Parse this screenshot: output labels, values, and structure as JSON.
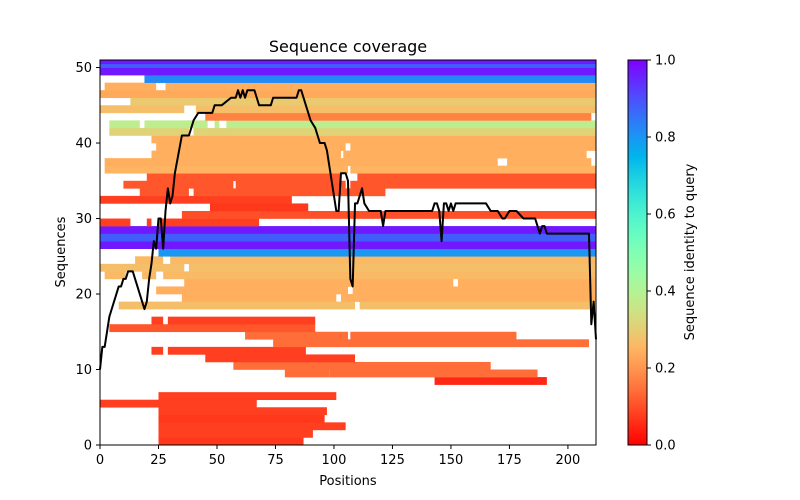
{
  "chart_data": {
    "type": "heatmap",
    "title": "Sequence coverage",
    "xlabel": "Positions",
    "ylabel": "Sequences",
    "xlim": [
      0,
      212
    ],
    "ylim": [
      0,
      51
    ],
    "xticks": [
      "0",
      "25",
      "50",
      "75",
      "100",
      "125",
      "150",
      "175",
      "200"
    ],
    "xtick_values": [
      0,
      25,
      50,
      75,
      100,
      125,
      150,
      175,
      200
    ],
    "yticks": [
      "0",
      "10",
      "20",
      "30",
      "40",
      "50"
    ],
    "ytick_values": [
      0,
      10,
      20,
      30,
      40,
      50
    ],
    "colorbar": {
      "label": "Sequence identity to query",
      "colormap": "rainbow",
      "range": [
        0,
        1
      ],
      "ticks": [
        "0.0",
        "0.2",
        "0.4",
        "0.6",
        "0.8",
        "1.0"
      ],
      "tick_values": [
        0,
        0.2,
        0.4,
        0.6,
        0.8,
        1.0
      ]
    },
    "rows": [
      {
        "row": 0,
        "identity": 0.07,
        "segments": [
          [
            25,
            87
          ]
        ]
      },
      {
        "row": 1,
        "identity": 0.08,
        "segments": [
          [
            25,
            91
          ]
        ]
      },
      {
        "row": 2,
        "identity": 0.08,
        "segments": [
          [
            25,
            105
          ]
        ]
      },
      {
        "row": 3,
        "identity": 0.07,
        "segments": [
          [
            25,
            96
          ]
        ]
      },
      {
        "row": 4,
        "identity": 0.08,
        "segments": [
          [
            25,
            97
          ]
        ]
      },
      {
        "row": 5,
        "identity": 0.08,
        "segments": [
          [
            0,
            67
          ]
        ]
      },
      {
        "row": 6,
        "identity": 0.08,
        "segments": [
          [
            25,
            101
          ]
        ]
      },
      {
        "row": 8,
        "identity": 0.05,
        "segments": [
          [
            143,
            191
          ]
        ]
      },
      {
        "row": 9,
        "identity": 0.14,
        "segments": [
          [
            79,
            98
          ],
          [
            98,
            187
          ]
        ]
      },
      {
        "row": 10,
        "identity": 0.14,
        "segments": [
          [
            57,
            167
          ]
        ]
      },
      {
        "row": 11,
        "identity": 0.08,
        "segments": [
          [
            45,
            109
          ]
        ]
      },
      {
        "row": 12,
        "identity": 0.08,
        "segments": [
          [
            22,
            27
          ],
          [
            29,
            88
          ]
        ]
      },
      {
        "row": 13,
        "identity": 0.14,
        "segments": [
          [
            74,
            209
          ]
        ]
      },
      {
        "row": 14,
        "identity": 0.14,
        "segments": [
          [
            62,
            106
          ],
          [
            107,
            178
          ]
        ]
      },
      {
        "row": 15,
        "identity": 0.11,
        "segments": [
          [
            4,
            92
          ]
        ]
      },
      {
        "row": 16,
        "identity": 0.08,
        "segments": [
          [
            22,
            27
          ],
          [
            29,
            92
          ]
        ]
      },
      {
        "row": 18,
        "identity": 0.27,
        "segments": [
          [
            8,
            109
          ],
          [
            111,
            212
          ]
        ]
      },
      {
        "row": 19,
        "identity": 0.24,
        "segments": [
          [
            35,
            101
          ],
          [
            103,
            212
          ]
        ]
      },
      {
        "row": 20,
        "identity": 0.24,
        "segments": [
          [
            24,
            106
          ],
          [
            108,
            212
          ]
        ]
      },
      {
        "row": 21,
        "identity": 0.24,
        "segments": [
          [
            36,
            151
          ],
          [
            153,
            212
          ]
        ]
      },
      {
        "row": 22,
        "identity": 0.26,
        "segments": [
          [
            2,
            11
          ],
          [
            18,
            24
          ],
          [
            27,
            212
          ]
        ]
      },
      {
        "row": 23,
        "identity": 0.27,
        "segments": [
          [
            0,
            36
          ],
          [
            38,
            212
          ]
        ]
      },
      {
        "row": 24,
        "identity": 0.26,
        "segments": [
          [
            15,
            27
          ],
          [
            30,
            212
          ]
        ]
      },
      {
        "row": 25,
        "identity": 0.8,
        "segments": [
          [
            25,
            212
          ]
        ]
      },
      {
        "row": 26,
        "identity": 0.97,
        "segments": [
          [
            0,
            212
          ]
        ]
      },
      {
        "row": 27,
        "identity": 0.88,
        "segments": [
          [
            0,
            212
          ]
        ]
      },
      {
        "row": 28,
        "identity": 0.97,
        "segments": [
          [
            0,
            212
          ]
        ]
      },
      {
        "row": 29,
        "identity": 0.08,
        "segments": [
          [
            0,
            13
          ],
          [
            20,
            22
          ],
          [
            25,
            68
          ]
        ]
      },
      {
        "row": 30,
        "identity": 0.1,
        "segments": [
          [
            35,
            212
          ]
        ]
      },
      {
        "row": 31,
        "identity": 0.07,
        "segments": [
          [
            47,
            89
          ]
        ]
      },
      {
        "row": 32,
        "identity": 0.08,
        "segments": [
          [
            0,
            82
          ]
        ]
      },
      {
        "row": 33,
        "identity": 0.11,
        "segments": [
          [
            17,
            38
          ],
          [
            40,
            122
          ]
        ]
      },
      {
        "row": 34,
        "identity": 0.11,
        "segments": [
          [
            10,
            57
          ],
          [
            58,
            105
          ],
          [
            107,
            212
          ]
        ]
      },
      {
        "row": 35,
        "identity": 0.11,
        "segments": [
          [
            20,
            103
          ],
          [
            110,
            212
          ]
        ]
      },
      {
        "row": 36,
        "identity": 0.25,
        "segments": [
          [
            2,
            106
          ],
          [
            107,
            212
          ]
        ]
      },
      {
        "row": 37,
        "identity": 0.24,
        "segments": [
          [
            2,
            170
          ],
          [
            174,
            210
          ]
        ]
      },
      {
        "row": 38,
        "identity": 0.24,
        "segments": [
          [
            22,
            103
          ],
          [
            104,
            208
          ]
        ]
      },
      {
        "row": 39,
        "identity": 0.24,
        "segments": [
          [
            24,
            105
          ],
          [
            107,
            212
          ]
        ]
      },
      {
        "row": 40,
        "identity": 0.24,
        "segments": [
          [
            22,
            212
          ]
        ]
      },
      {
        "row": 41,
        "identity": 0.31,
        "segments": [
          [
            4,
            38
          ],
          [
            40,
            212
          ]
        ]
      },
      {
        "row": 42,
        "identity": 0.38,
        "segments": [
          [
            4,
            17
          ],
          [
            19,
            46
          ],
          [
            49,
            51
          ],
          [
            54,
            212
          ]
        ]
      },
      {
        "row": 43,
        "identity": 0.17,
        "segments": [
          [
            45,
            210
          ]
        ]
      },
      {
        "row": 44,
        "identity": 0.27,
        "segments": [
          [
            0,
            36
          ],
          [
            41,
            212
          ]
        ]
      },
      {
        "row": 45,
        "identity": 0.29,
        "segments": [
          [
            13,
            212
          ]
        ]
      },
      {
        "row": 46,
        "identity": 0.23,
        "segments": [
          [
            0,
            212
          ]
        ]
      },
      {
        "row": 47,
        "identity": 0.24,
        "segments": [
          [
            2,
            24
          ],
          [
            28,
            212
          ]
        ]
      },
      {
        "row": 48,
        "identity": 0.82,
        "segments": [
          [
            19,
            212
          ]
        ]
      },
      {
        "row": 49,
        "identity": 0.97,
        "segments": [
          [
            0,
            212
          ]
        ]
      },
      {
        "row": 50,
        "identity": 0.88,
        "segments": [
          [
            0,
            212
          ]
        ]
      },
      {
        "row": 50.5,
        "identity": 0.97,
        "segments": [
          [
            0,
            212
          ]
        ]
      }
    ],
    "coverage_line": {
      "name": "coverage",
      "color": "#000000",
      "x": [
        0,
        1,
        2,
        3,
        4,
        5,
        6,
        7,
        8,
        9,
        10,
        11,
        12,
        13,
        14,
        15,
        16,
        17,
        18,
        19,
        20,
        21,
        22,
        23,
        24,
        25,
        26,
        27,
        28,
        29,
        30,
        31,
        32,
        35,
        36,
        37,
        38,
        40,
        42,
        43,
        44,
        46,
        48,
        49,
        50,
        52,
        56,
        57,
        58,
        59,
        60,
        61,
        62,
        63,
        64,
        66,
        67,
        68,
        69,
        73,
        74,
        84,
        85,
        86,
        87,
        88,
        89,
        90,
        92,
        93,
        94,
        95,
        96,
        97,
        98,
        99,
        100,
        101,
        102,
        103,
        104,
        105,
        106,
        107,
        108,
        109,
        110,
        111,
        112,
        113,
        115,
        120,
        121,
        122,
        123,
        125,
        140,
        142,
        143,
        144,
        145,
        146,
        147,
        148,
        149,
        150,
        151,
        152,
        153,
        154,
        164,
        165,
        167,
        168,
        170,
        172,
        173,
        175,
        176,
        178,
        181,
        182,
        185,
        186,
        187,
        188,
        189,
        190,
        191,
        192,
        200,
        208,
        209,
        210,
        211,
        212
      ],
      "y": [
        10,
        13,
        13,
        15,
        17,
        18,
        19,
        20,
        21,
        21,
        22,
        22,
        23,
        23,
        23,
        22,
        21,
        20,
        19,
        18,
        19,
        22,
        24,
        27,
        26,
        30,
        30,
        26,
        31,
        34,
        32,
        33,
        36,
        41,
        41,
        41,
        41,
        43,
        44,
        44,
        44,
        44,
        44,
        45,
        45,
        45,
        46,
        46,
        46,
        47,
        46,
        47,
        46,
        47,
        47,
        47,
        46,
        45,
        45,
        45,
        46,
        46,
        47,
        47,
        46,
        45,
        44,
        43,
        42,
        41,
        40,
        40,
        40,
        39,
        37,
        35,
        33,
        31,
        31,
        36,
        36,
        36,
        35,
        22,
        21,
        32,
        32,
        33,
        34,
        32,
        31,
        31,
        29,
        31,
        31,
        31,
        31,
        31,
        32,
        32,
        31,
        27,
        32,
        32,
        31,
        32,
        31,
        32,
        32,
        32,
        32,
        32,
        31,
        31,
        31,
        30,
        30,
        31,
        31,
        31,
        30,
        30,
        30,
        30,
        29,
        28,
        29,
        29,
        28,
        28,
        28,
        28,
        28,
        16,
        19,
        14
      ]
    }
  }
}
